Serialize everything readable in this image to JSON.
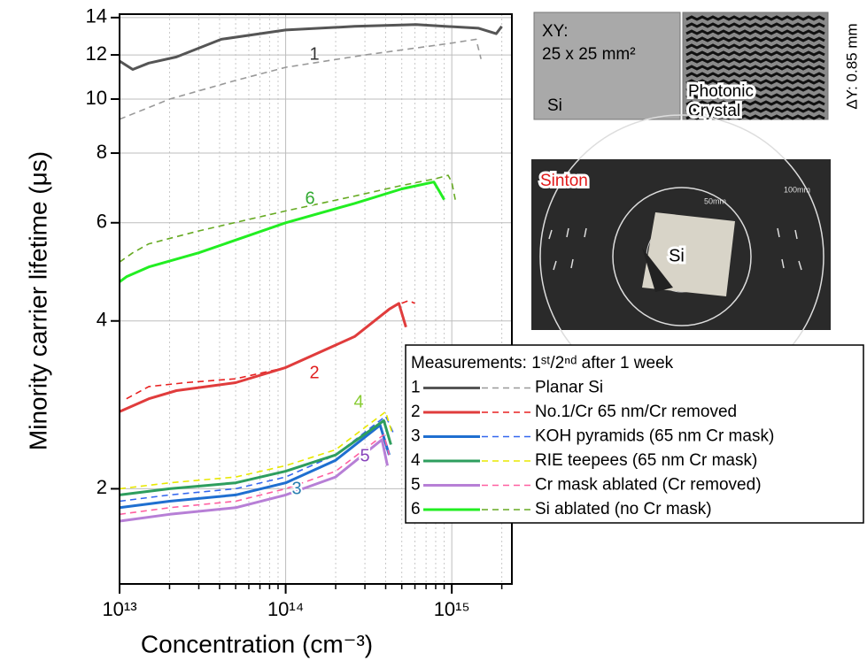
{
  "chart_data": {
    "type": "line",
    "x_label": "Concentration (cm⁻³)",
    "y_label": "Minority carrier lifetime (μs)",
    "xscale": "log",
    "yscale": "log",
    "grid": true,
    "xlim": [
      10000000000000.0,
      2300000000000000.0
    ],
    "ylim": [
      1.35,
      14.2
    ],
    "xticks": [
      {
        "value": 10000000000000.0,
        "label": "10¹³"
      },
      {
        "value": 100000000000000.0,
        "label": "10¹⁴"
      },
      {
        "value": 1000000000000000.0,
        "label": "10¹⁵"
      }
    ],
    "xminor_ticks": [
      20000000000000.0,
      30000000000000.0,
      40000000000000.0,
      50000000000000.0,
      60000000000000.0,
      70000000000000.0,
      80000000000000.0,
      90000000000000.0,
      200000000000000.0,
      300000000000000.0,
      400000000000000.0,
      500000000000000.0,
      600000000000000.0,
      700000000000000.0,
      800000000000000.0,
      900000000000000.0,
      2000000000000000.0
    ],
    "yticks": [
      2,
      4,
      6,
      8,
      10,
      12,
      14
    ],
    "legend_title": "Measurements: 1ˢᵗ/2ⁿᵈ after 1 week",
    "series": [
      {
        "label": "1",
        "name": "Planar Si",
        "color": "#555555",
        "dash_color": "#999999",
        "label_color": "#333333",
        "first": {
          "x": [
            10000000000000.0,
            12000000000000.0,
            15000000000000.0,
            22000000000000.0,
            41000000000000.0,
            100000000000000.0,
            260000000000000.0,
            610000000000000.0,
            1450000000000000.0,
            1850000000000000.0,
            2000000000000000.0
          ],
          "values": [
            11.7,
            11.3,
            11.6,
            11.9,
            12.8,
            13.3,
            13.5,
            13.6,
            13.4,
            13.1,
            13.5
          ]
        },
        "second": {
          "x": [
            10000000000000.0,
            20000000000000.0,
            50000000000000.0,
            100000000000000.0,
            300000000000000.0,
            1000000000000000.0,
            1400000000000000.0,
            1500000000000000.0
          ],
          "values": [
            9.2,
            10.0,
            10.8,
            11.4,
            12.0,
            12.6,
            12.8,
            11.8
          ]
        }
      },
      {
        "label": "2",
        "name": "No.1/Cr 65 nm/Cr removed",
        "color": "#e03c3c",
        "dash_color": "#e82020",
        "label_color": "#e02020",
        "first": {
          "x": [
            10000000000000.0,
            15000000000000.0,
            22000000000000.0,
            50000000000000.0,
            100000000000000.0,
            260000000000000.0,
            420000000000000.0,
            480000000000000.0,
            530000000000000.0
          ],
          "values": [
            2.75,
            2.9,
            3.0,
            3.1,
            3.3,
            3.75,
            4.2,
            4.3,
            3.9
          ]
        },
        "second": {
          "x": [
            11000000000000.0,
            15000000000000.0,
            25000000000000.0,
            50000000000000.0,
            100000000000000.0,
            260000000000000.0,
            450000000000000.0,
            550000000000000.0,
            600000000000000.0
          ],
          "values": [
            2.9,
            3.05,
            3.1,
            3.15,
            3.3,
            3.75,
            4.25,
            4.35,
            4.3
          ]
        }
      },
      {
        "label": "3",
        "name": "KOH pyramids (65 nm Cr mask)",
        "color": "#1f6fd0",
        "dash_color": "#3366ee",
        "label_color": "#2a7fb0",
        "first": {
          "x": [
            10000000000000.0,
            20000000000000.0,
            50000000000000.0,
            100000000000000.0,
            200000000000000.0,
            370000000000000.0,
            420000000000000.0
          ],
          "values": [
            1.85,
            1.9,
            1.95,
            2.05,
            2.25,
            2.6,
            2.3
          ]
        },
        "second": {
          "x": [
            10000000000000.0,
            20000000000000.0,
            50000000000000.0,
            100000000000000.0,
            200000000000000.0,
            400000000000000.0,
            450000000000000.0
          ],
          "values": [
            1.9,
            1.95,
            2.0,
            2.1,
            2.3,
            2.7,
            2.5
          ]
        }
      },
      {
        "label": "4",
        "name": "RIE teepees (65 nm Cr mask)",
        "color": "#2e9e5e",
        "dash_color": "#e8e800",
        "label_color": "#88cc33",
        "first": {
          "x": [
            10000000000000.0,
            20000000000000.0,
            50000000000000.0,
            100000000000000.0,
            200000000000000.0,
            390000000000000.0,
            430000000000000.0
          ],
          "values": [
            1.95,
            2.0,
            2.05,
            2.15,
            2.3,
            2.65,
            2.4
          ]
        },
        "second": {
          "x": [
            10000000000000.0,
            20000000000000.0,
            50000000000000.0,
            100000000000000.0,
            200000000000000.0,
            400000000000000.0,
            440000000000000.0
          ],
          "values": [
            2.0,
            2.05,
            2.1,
            2.2,
            2.35,
            2.75,
            2.5
          ]
        }
      },
      {
        "label": "5",
        "name": "Cr mask ablated (Cr removed)",
        "color": "#b77fd6",
        "dash_color": "#ff5fa0",
        "label_color": "#8844bb",
        "first": {
          "x": [
            10000000000000.0,
            20000000000000.0,
            50000000000000.0,
            100000000000000.0,
            200000000000000.0,
            380000000000000.0,
            410000000000000.0
          ],
          "values": [
            1.75,
            1.8,
            1.85,
            1.95,
            2.1,
            2.45,
            2.2
          ]
        },
        "second": {
          "x": [
            10000000000000.0,
            20000000000000.0,
            50000000000000.0,
            100000000000000.0,
            200000000000000.0,
            390000000000000.0,
            420000000000000.0
          ],
          "values": [
            1.8,
            1.85,
            1.9,
            2.0,
            2.15,
            2.5,
            2.3
          ]
        }
      },
      {
        "label": "6",
        "name": "Si ablated (no Cr mask)",
        "color": "#22ee22",
        "dash_color": "#66aa22",
        "label_color": "#33aa33",
        "first": {
          "x": [
            10000000000000.0,
            11000000000000.0,
            15000000000000.0,
            30000000000000.0,
            100000000000000.0,
            260000000000000.0,
            500000000000000.0,
            780000000000000.0,
            850000000000000.0,
            900000000000000.0
          ],
          "values": [
            4.7,
            4.8,
            5.0,
            5.3,
            6.0,
            6.5,
            6.9,
            7.1,
            6.8,
            6.6
          ]
        },
        "second": {
          "x": [
            10000000000000.0,
            12000000000000.0,
            15000000000000.0,
            30000000000000.0,
            100000000000000.0,
            260000000000000.0,
            500000000000000.0,
            800000000000000.0,
            950000000000000.0,
            1000000000000000.0,
            1050000000000000.0
          ],
          "values": [
            5.1,
            5.3,
            5.5,
            5.8,
            6.3,
            6.7,
            7.0,
            7.2,
            7.3,
            7.1,
            6.6
          ]
        }
      }
    ]
  },
  "inset": {
    "xy_label": "XY:",
    "size": "25 x 25 mm²",
    "si": "Si",
    "crystal_1": "Photonic",
    "crystal_2": "Crystal",
    "thickness": "ΔY: 0.85 mm",
    "photo_label": "Sinton",
    "photo_si": "Si",
    "ring_100": "100mm",
    "ring_50": "50mm"
  }
}
